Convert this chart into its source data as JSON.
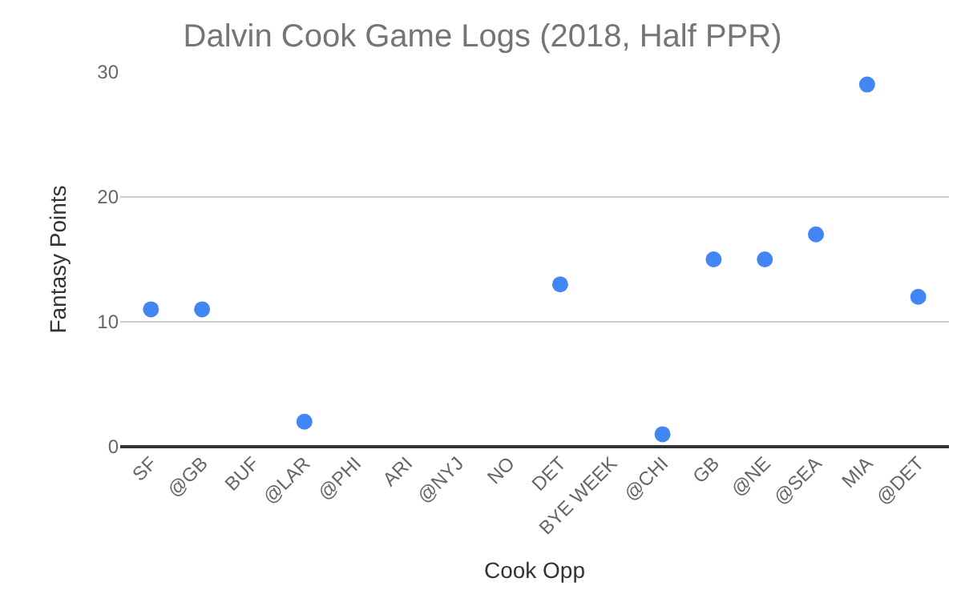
{
  "chart_data": {
    "type": "scatter",
    "title": "Dalvin Cook Game Logs (2018, Half PPR)",
    "xlabel": "Cook Opp",
    "ylabel": "Fantasy Points",
    "categories": [
      "SF",
      "@GB",
      "BUF",
      "@LAR",
      "@PHI",
      "ARI",
      "@NYJ",
      "NO",
      "DET",
      "BYE WEEK",
      "@CHI",
      "GB",
      "@NE",
      "@SEA",
      "MIA",
      "@DET"
    ],
    "series": [
      {
        "color": "#4285f4",
        "values": [
          11,
          11,
          null,
          2,
          null,
          null,
          null,
          null,
          13,
          null,
          1,
          15,
          15,
          17,
          29,
          12
        ]
      }
    ],
    "ylim": [
      0,
      30
    ],
    "yticks": [
      0,
      10,
      20,
      30
    ],
    "grid": "y",
    "marker": "circle",
    "legend": false
  }
}
